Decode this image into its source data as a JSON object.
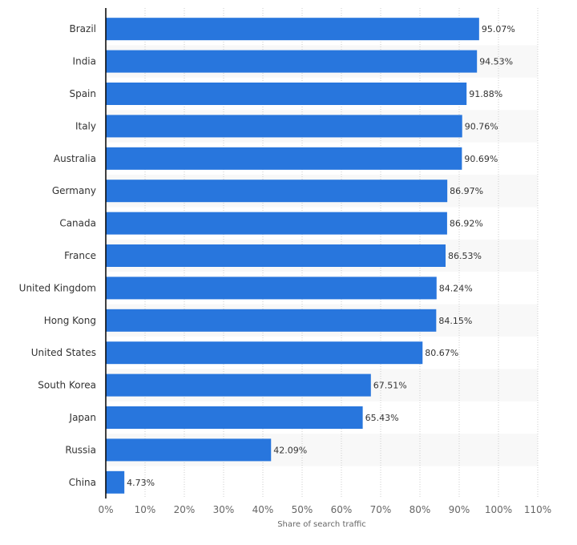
{
  "chart_data": {
    "type": "bar",
    "orientation": "horizontal",
    "categories": [
      "Brazil",
      "India",
      "Spain",
      "Italy",
      "Australia",
      "Germany",
      "Canada",
      "France",
      "United Kingdom",
      "Hong Kong",
      "United States",
      "South Korea",
      "Japan",
      "Russia",
      "China"
    ],
    "values": [
      95.07,
      94.53,
      91.88,
      90.76,
      90.69,
      86.97,
      86.92,
      86.53,
      84.24,
      84.15,
      80.67,
      67.51,
      65.43,
      42.09,
      4.73
    ],
    "value_labels": [
      "95.07%",
      "94.53%",
      "91.88%",
      "90.76%",
      "90.69%",
      "86.97%",
      "86.92%",
      "86.53%",
      "84.24%",
      "84.15%",
      "80.67%",
      "67.51%",
      "65.43%",
      "42.09%",
      "4.73%"
    ],
    "xlabel": "Share of search traffic",
    "ylabel": "",
    "xlim": [
      0,
      110
    ],
    "xticks": [
      "0%",
      "10%",
      "20%",
      "30%",
      "40%",
      "50%",
      "60%",
      "70%",
      "80%",
      "90%",
      "100%",
      "110%"
    ],
    "grid": true,
    "bar_color": "#2876dd",
    "alt_row_color": "#f8f8f8"
  }
}
